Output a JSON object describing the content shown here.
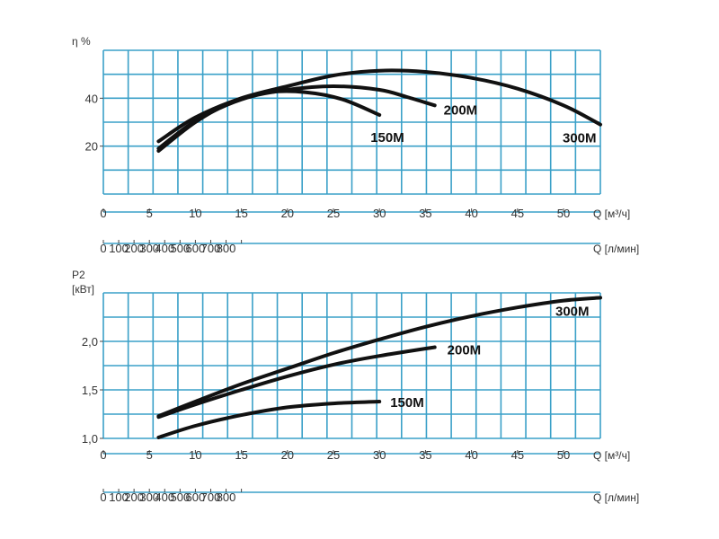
{
  "colors": {
    "grid": "#3aa0c8",
    "curve": "#111111",
    "axis": "#444444"
  },
  "chart_data": [
    {
      "type": "line",
      "title": "",
      "ylabel": "η %",
      "xlabel": "Q [м³/ч]",
      "x2label": "Q [л/мин]",
      "xlim": [
        0,
        54
      ],
      "ylim": [
        0,
        60
      ],
      "x_ticks": [
        0,
        5,
        10,
        15,
        20,
        25,
        30,
        35,
        40,
        45,
        50
      ],
      "y_ticks": [
        20,
        40
      ],
      "x2_ticks": [
        0,
        100,
        200,
        300,
        400,
        500,
        600,
        700,
        800,
        900
      ],
      "series": [
        {
          "name": "150M",
          "x": [
            6,
            10,
            14,
            18,
            22,
            26,
            30
          ],
          "y": [
            18,
            30,
            38.5,
            42.5,
            42.5,
            39.5,
            33
          ]
        },
        {
          "name": "200M",
          "x": [
            6,
            10,
            15,
            20,
            25,
            30,
            33,
            36
          ],
          "y": [
            19,
            30.5,
            39.5,
            43.5,
            45,
            43.5,
            40.5,
            37
          ]
        },
        {
          "name": "300M",
          "x": [
            6,
            10,
            15,
            20,
            25,
            30,
            35,
            40,
            45,
            50,
            54
          ],
          "y": [
            22,
            32,
            40,
            45,
            49.5,
            51.5,
            51,
            48.5,
            44,
            37,
            29
          ]
        }
      ]
    },
    {
      "type": "line",
      "title": "",
      "ylabel_line1": "P2",
      "ylabel_line2": "[кВт]",
      "xlabel": "Q [м³/ч]",
      "x2label": "Q [л/мин]",
      "xlim": [
        0,
        54
      ],
      "ylim": [
        1.0,
        2.5
      ],
      "x_ticks": [
        0,
        5,
        10,
        15,
        20,
        25,
        30,
        35,
        40,
        45,
        50
      ],
      "y_ticks": [
        1.0,
        1.5,
        2.0
      ],
      "y_tick_labels": [
        "1,0",
        "1,5",
        "2,0"
      ],
      "x2_ticks": [
        0,
        100,
        200,
        300,
        400,
        500,
        600,
        700,
        800,
        900
      ],
      "series": [
        {
          "name": "150M",
          "x": [
            6,
            10,
            15,
            20,
            25,
            30
          ],
          "y": [
            1.01,
            1.13,
            1.24,
            1.32,
            1.36,
            1.38
          ]
        },
        {
          "name": "200M",
          "x": [
            6,
            10,
            15,
            20,
            25,
            30,
            36
          ],
          "y": [
            1.22,
            1.35,
            1.5,
            1.64,
            1.76,
            1.85,
            1.94
          ]
        },
        {
          "name": "300M",
          "x": [
            6,
            10,
            15,
            20,
            25,
            30,
            35,
            40,
            45,
            50,
            54
          ],
          "y": [
            1.23,
            1.38,
            1.56,
            1.72,
            1.88,
            2.02,
            2.15,
            2.26,
            2.35,
            2.42,
            2.45
          ]
        }
      ]
    }
  ]
}
